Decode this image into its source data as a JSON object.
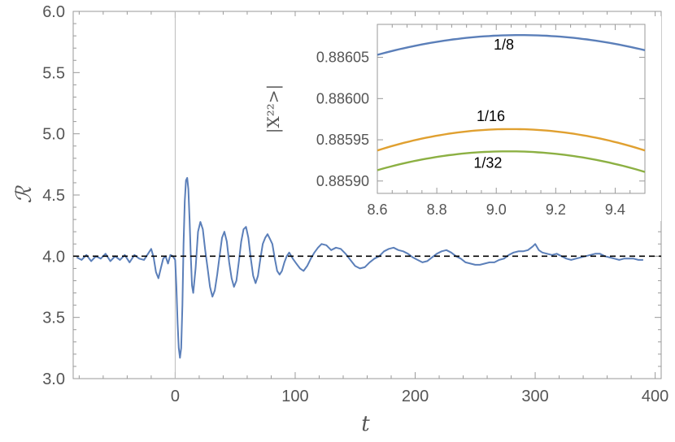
{
  "chart_data": [
    {
      "type": "line",
      "xlabel": "t",
      "ylabel": "ℛ",
      "xlim": [
        -85,
        405
      ],
      "ylim": [
        3.0,
        6.0
      ],
      "x_ticks": [
        0,
        100,
        200,
        300,
        400
      ],
      "x_tick_labels": [
        "0",
        "100",
        "200",
        "300",
        "400"
      ],
      "y_ticks": [
        3.0,
        3.5,
        4.0,
        4.5,
        5.0,
        5.5,
        6.0
      ],
      "y_tick_labels": [
        "3.0",
        "3.5",
        "4.0",
        "4.5",
        "5.0",
        "5.5",
        "6.0"
      ],
      "reference_line": {
        "y": 4.0,
        "style": "dashed",
        "color": "#000000"
      },
      "vertical_line": {
        "x": 0,
        "color": "#bbbbbb"
      },
      "series": [
        {
          "color": "#5b7fb9",
          "points": [
            [
              -82,
              3.99
            ],
            [
              -78,
              3.97
            ],
            [
              -74,
              4.01
            ],
            [
              -70,
              3.96
            ],
            [
              -66,
              4.0
            ],
            [
              -62,
              3.98
            ],
            [
              -58,
              4.02
            ],
            [
              -54,
              3.96
            ],
            [
              -50,
              4.0
            ],
            [
              -46,
              3.97
            ],
            [
              -42,
              4.01
            ],
            [
              -38,
              3.95
            ],
            [
              -34,
              4.01
            ],
            [
              -30,
              3.98
            ],
            [
              -26,
              3.97
            ],
            [
              -22,
              4.03
            ],
            [
              -20,
              4.06
            ],
            [
              -18,
              3.99
            ],
            [
              -16,
              3.87
            ],
            [
              -14,
              3.82
            ],
            [
              -12,
              3.9
            ],
            [
              -10,
              3.98
            ],
            [
              -8,
              4.0
            ],
            [
              -6,
              3.94
            ],
            [
              -4,
              4.01
            ],
            [
              -2,
              4.0
            ],
            [
              0,
              3.97
            ],
            [
              1,
              3.75
            ],
            [
              2,
              3.45
            ],
            [
              3,
              3.25
            ],
            [
              4,
              3.17
            ],
            [
              5,
              3.25
            ],
            [
              6,
              3.6
            ],
            [
              7,
              4.1
            ],
            [
              8,
              4.45
            ],
            [
              9,
              4.62
            ],
            [
              10,
              4.64
            ],
            [
              11,
              4.55
            ],
            [
              12,
              4.3
            ],
            [
              13,
              4.0
            ],
            [
              14,
              3.76
            ],
            [
              15,
              3.7
            ],
            [
              17,
              3.9
            ],
            [
              19,
              4.2
            ],
            [
              21,
              4.28
            ],
            [
              23,
              4.22
            ],
            [
              25,
              4.05
            ],
            [
              27,
              3.9
            ],
            [
              29,
              3.75
            ],
            [
              31,
              3.67
            ],
            [
              33,
              3.72
            ],
            [
              35,
              3.85
            ],
            [
              37,
              4.0
            ],
            [
              39,
              4.15
            ],
            [
              41,
              4.2
            ],
            [
              43,
              4.12
            ],
            [
              45,
              3.95
            ],
            [
              47,
              3.82
            ],
            [
              49,
              3.75
            ],
            [
              51,
              3.8
            ],
            [
              53,
              3.95
            ],
            [
              55,
              4.12
            ],
            [
              57,
              4.22
            ],
            [
              59,
              4.24
            ],
            [
              61,
              4.15
            ],
            [
              63,
              3.98
            ],
            [
              65,
              3.84
            ],
            [
              67,
              3.78
            ],
            [
              69,
              3.84
            ],
            [
              71,
              3.98
            ],
            [
              73,
              4.1
            ],
            [
              75,
              4.15
            ],
            [
              77,
              4.18
            ],
            [
              79,
              4.14
            ],
            [
              81,
              4.1
            ],
            [
              83,
              3.98
            ],
            [
              85,
              3.88
            ],
            [
              87,
              3.85
            ],
            [
              89,
              3.88
            ],
            [
              91,
              3.95
            ],
            [
              93,
              4.0
            ],
            [
              95,
              4.03
            ],
            [
              98,
              3.98
            ],
            [
              101,
              3.94
            ],
            [
              104,
              3.9
            ],
            [
              107,
              3.88
            ],
            [
              110,
              3.92
            ],
            [
              113,
              3.98
            ],
            [
              116,
              4.03
            ],
            [
              119,
              4.07
            ],
            [
              122,
              4.1
            ],
            [
              126,
              4.09
            ],
            [
              130,
              4.05
            ],
            [
              134,
              4.07
            ],
            [
              138,
              4.06
            ],
            [
              142,
              4.02
            ],
            [
              146,
              3.97
            ],
            [
              150,
              3.92
            ],
            [
              154,
              3.9
            ],
            [
              158,
              3.91
            ],
            [
              162,
              3.95
            ],
            [
              166,
              3.98
            ],
            [
              170,
              4.0
            ],
            [
              174,
              4.04
            ],
            [
              178,
              4.06
            ],
            [
              182,
              4.07
            ],
            [
              186,
              4.05
            ],
            [
              190,
              4.04
            ],
            [
              194,
              4.02
            ],
            [
              198,
              3.99
            ],
            [
              202,
              3.97
            ],
            [
              206,
              3.95
            ],
            [
              210,
              3.96
            ],
            [
              214,
              3.99
            ],
            [
              218,
              4.02
            ],
            [
              222,
              4.04
            ],
            [
              226,
              4.05
            ],
            [
              230,
              4.03
            ],
            [
              234,
              4.0
            ],
            [
              238,
              3.98
            ],
            [
              242,
              3.95
            ],
            [
              246,
              3.94
            ],
            [
              250,
              3.93
            ],
            [
              254,
              3.93
            ],
            [
              258,
              3.94
            ],
            [
              262,
              3.95
            ],
            [
              266,
              3.95
            ],
            [
              270,
              3.97
            ],
            [
              274,
              3.98
            ],
            [
              278,
              4.01
            ],
            [
              282,
              4.03
            ],
            [
              286,
              4.04
            ],
            [
              290,
              4.04
            ],
            [
              294,
              4.05
            ],
            [
              298,
              4.08
            ],
            [
              300,
              4.1
            ],
            [
              303,
              4.05
            ],
            [
              306,
              4.03
            ],
            [
              310,
              4.02
            ],
            [
              314,
              4.01
            ],
            [
              318,
              4.02
            ],
            [
              322,
              4.0
            ],
            [
              326,
              3.98
            ],
            [
              330,
              3.97
            ],
            [
              334,
              3.98
            ],
            [
              338,
              3.99
            ],
            [
              342,
              4.0
            ],
            [
              346,
              4.01
            ],
            [
              350,
              4.02
            ],
            [
              354,
              4.02
            ],
            [
              358,
              4.0
            ],
            [
              362,
              3.99
            ],
            [
              366,
              3.98
            ],
            [
              370,
              3.97
            ],
            [
              374,
              3.98
            ],
            [
              378,
              3.98
            ],
            [
              382,
              3.98
            ],
            [
              386,
              3.97
            ],
            [
              390,
              3.97
            ]
          ]
        }
      ]
    },
    {
      "type": "line",
      "ylabel": "|X²²>|",
      "xlim": [
        8.6,
        9.5
      ],
      "ylim": [
        0.885885,
        0.88609
      ],
      "x_ticks": [
        8.6,
        8.8,
        9.0,
        9.2,
        9.4
      ],
      "x_tick_labels": [
        "8.6",
        "8.8",
        "9.0",
        "9.2",
        "9.4"
      ],
      "y_ticks": [
        0.8859,
        0.88595,
        0.886,
        0.88605
      ],
      "y_tick_labels": [
        "0.88590",
        "0.88595",
        "0.88600",
        "0.88605"
      ],
      "series": [
        {
          "name": "1/8",
          "color": "#5b7fb9",
          "peak_x": 9.08,
          "peak_y": 0.886077,
          "end_left": 0.886053,
          "end_right": 0.886053
        },
        {
          "name": "1/16",
          "color": "#e0a030",
          "peak_x": 9.05,
          "peak_y": 0.885963,
          "end_left": 0.885937,
          "end_right": 0.885937
        },
        {
          "name": "1/32",
          "color": "#8cb043",
          "peak_x": 9.04,
          "peak_y": 0.885936,
          "end_left": 0.885911,
          "end_right": 0.885911
        }
      ]
    }
  ]
}
